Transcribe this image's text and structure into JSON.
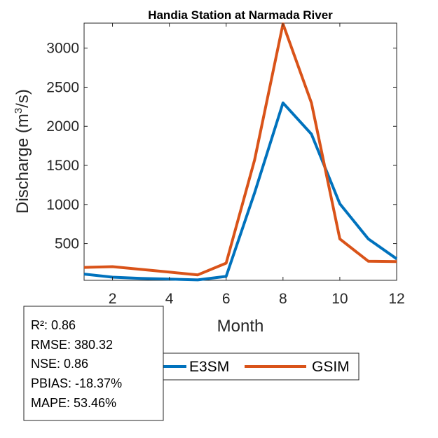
{
  "chart_data": {
    "type": "line",
    "title": "Handia  Station at  Narmada  River",
    "xlabel": "Month",
    "ylabel_prefix": "Discharge (m",
    "ylabel_sup": "3",
    "ylabel_suffix": "/s)",
    "xlim": [
      1,
      12
    ],
    "ylim": [
      30,
      3320
    ],
    "xticks": [
      2,
      4,
      6,
      8,
      10,
      12
    ],
    "yticks": [
      500,
      1000,
      1500,
      2000,
      2500,
      3000
    ],
    "x": [
      1,
      2,
      3,
      4,
      5,
      6,
      7,
      8,
      9,
      10,
      11,
      12
    ],
    "series": [
      {
        "name": "E3SM",
        "color": "#0072BD",
        "values": [
          110,
          70,
          55,
          45,
          35,
          80,
          1150,
          2300,
          1900,
          1010,
          560,
          305
        ]
      },
      {
        "name": "GSIM",
        "color": "#D95319",
        "values": [
          195,
          205,
          170,
          135,
          100,
          250,
          1570,
          3310,
          2300,
          560,
          275,
          270
        ]
      }
    ],
    "grid": false,
    "legend_placement": "bottom-right-outside"
  },
  "stats": {
    "lines": [
      "R²: 0.86",
      "RMSE: 380.32",
      "NSE: 0.86",
      "PBIAS: -18.37%",
      "MAPE: 53.46%"
    ]
  }
}
